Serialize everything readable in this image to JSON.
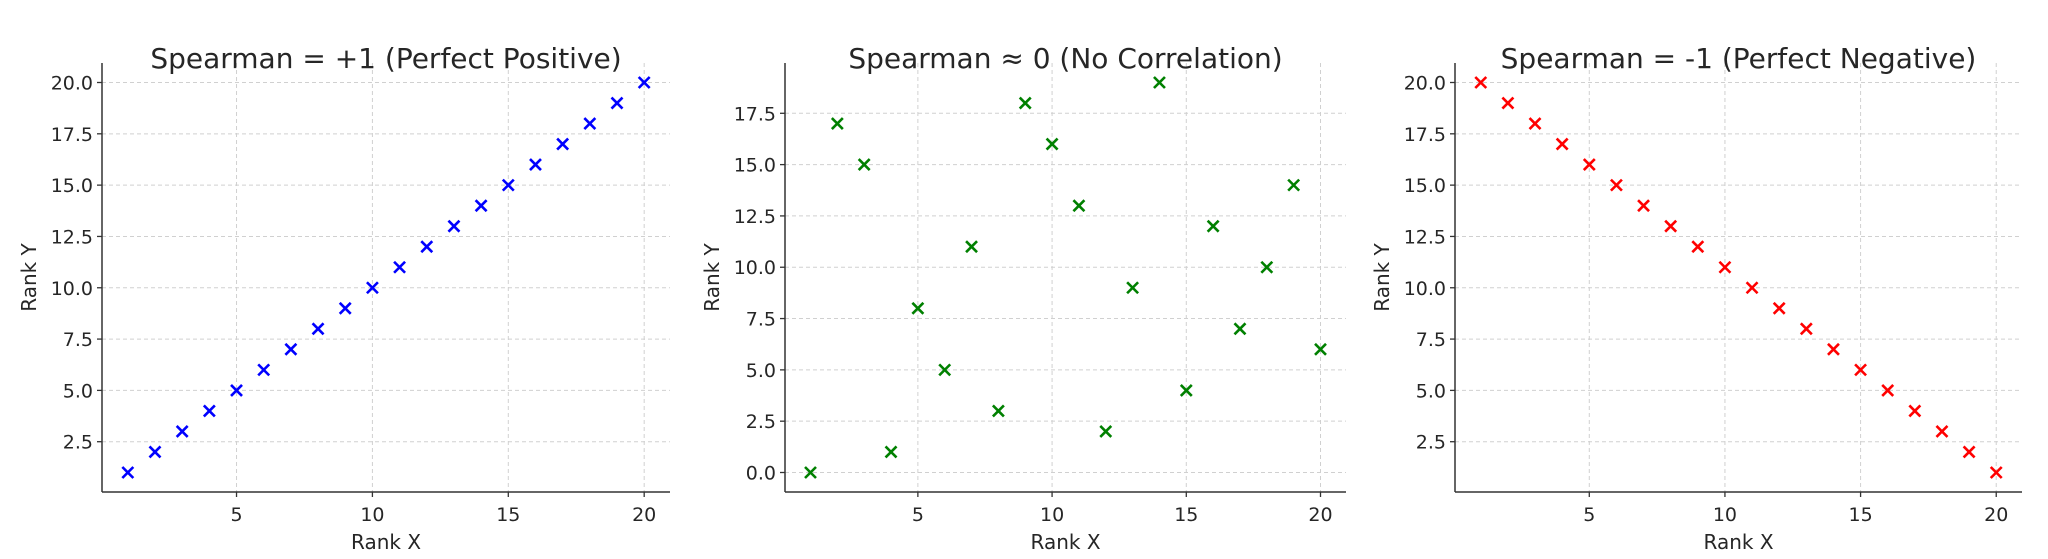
{
  "chart_data": [
    {
      "type": "scatter",
      "title": "Spearman = +1 (Perfect Positive)",
      "xlabel": "Rank X",
      "ylabel": "Rank Y",
      "marker": "x",
      "color": "#0000ff",
      "grid": true,
      "x": [
        1,
        2,
        3,
        4,
        5,
        6,
        7,
        8,
        9,
        10,
        11,
        12,
        13,
        14,
        15,
        16,
        17,
        18,
        19,
        20
      ],
      "y": [
        1,
        2,
        3,
        4,
        5,
        6,
        7,
        8,
        9,
        10,
        11,
        12,
        13,
        14,
        15,
        16,
        17,
        18,
        19,
        20
      ],
      "xlim": [
        0.05,
        20.95
      ],
      "ylim": [
        0.05,
        20.95
      ],
      "xticks": [
        "5",
        "10",
        "15",
        "20"
      ],
      "xtick_values": [
        5,
        10,
        15,
        20
      ],
      "yticks": [
        "2.5",
        "5.0",
        "7.5",
        "10.0",
        "12.5",
        "15.0",
        "17.5",
        "20.0"
      ],
      "ytick_values": [
        2.5,
        5,
        7.5,
        10,
        12.5,
        15,
        17.5,
        20
      ]
    },
    {
      "type": "scatter",
      "title": "Spearman ≈ 0 (No Correlation)",
      "xlabel": "Rank X",
      "ylabel": "Rank Y",
      "marker": "x",
      "color": "#008000",
      "grid": true,
      "x": [
        1,
        2,
        3,
        4,
        5,
        6,
        7,
        8,
        9,
        10,
        11,
        12,
        13,
        14,
        15,
        16,
        17,
        18,
        19,
        20
      ],
      "y": [
        0,
        17,
        15,
        1,
        8,
        5,
        11,
        3,
        18,
        16,
        13,
        2,
        9,
        19,
        4,
        12,
        7,
        10,
        14,
        6
      ],
      "xlim": [
        0.05,
        20.95
      ],
      "ylim": [
        -0.95,
        19.95
      ],
      "xticks": [
        "5",
        "10",
        "15",
        "20"
      ],
      "xtick_values": [
        5,
        10,
        15,
        20
      ],
      "yticks": [
        "0.0",
        "2.5",
        "5.0",
        "7.5",
        "10.0",
        "12.5",
        "15.0",
        "17.5"
      ],
      "ytick_values": [
        0,
        2.5,
        5,
        7.5,
        10,
        12.5,
        15,
        17.5
      ]
    },
    {
      "type": "scatter",
      "title": "Spearman = -1 (Perfect Negative)",
      "xlabel": "Rank X",
      "ylabel": "Rank Y",
      "marker": "x",
      "color": "#ff0000",
      "grid": true,
      "x": [
        1,
        2,
        3,
        4,
        5,
        6,
        7,
        8,
        9,
        10,
        11,
        12,
        13,
        14,
        15,
        16,
        17,
        18,
        19,
        20
      ],
      "y": [
        20,
        19,
        18,
        17,
        16,
        15,
        14,
        13,
        12,
        11,
        10,
        9,
        8,
        7,
        6,
        5,
        4,
        3,
        2,
        1
      ],
      "xlim": [
        0.05,
        20.95
      ],
      "ylim": [
        0.05,
        20.95
      ],
      "xticks": [
        "5",
        "10",
        "15",
        "20"
      ],
      "xtick_values": [
        5,
        10,
        15,
        20
      ],
      "yticks": [
        "2.5",
        "5.0",
        "7.5",
        "10.0",
        "12.5",
        "15.0",
        "17.5",
        "20.0"
      ],
      "ytick_values": [
        2.5,
        5,
        7.5,
        10,
        12.5,
        15,
        17.5,
        20
      ]
    }
  ]
}
